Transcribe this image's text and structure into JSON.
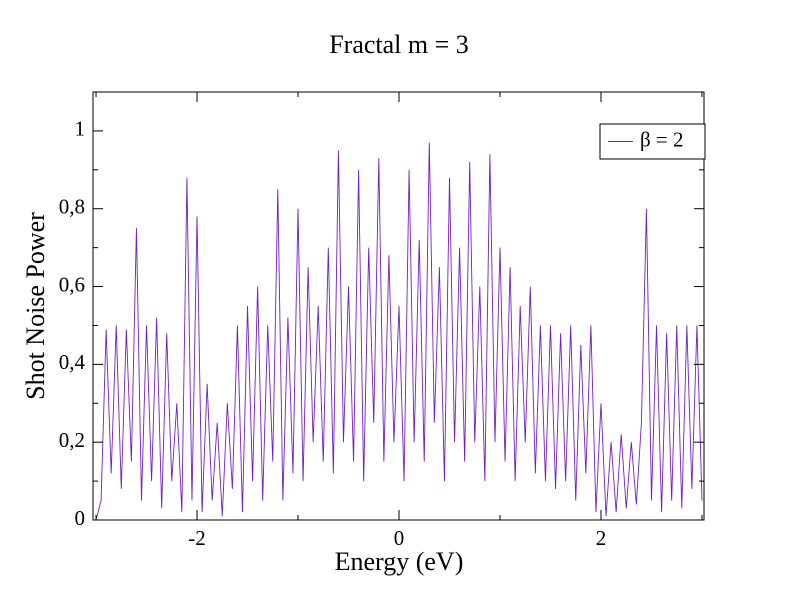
{
  "chart_data": {
    "type": "line",
    "title": "Fractal m = 3",
    "xlabel": "Energy (eV)",
    "ylabel": "Shot Noise Power",
    "xlim": [
      -3.03,
      3.02
    ],
    "ylim": [
      0,
      1.1
    ],
    "xticks": [
      -2,
      0,
      2
    ],
    "xminorticks": [
      -3,
      -1,
      1,
      3
    ],
    "yticks": [
      0,
      {
        "value": 0.2,
        "label": "0,2"
      },
      {
        "value": 0.4,
        "label": "0,4"
      },
      {
        "value": 0.6,
        "label": "0,6"
      },
      {
        "value": 0.8,
        "label": "0,8"
      },
      1
    ],
    "yminorticks": [
      0.1,
      0.3,
      0.5,
      0.7,
      0.9,
      1.1
    ],
    "legend": "upper right",
    "x": [
      -3,
      -2.95,
      -2.9,
      -2.85,
      -2.8,
      -2.75,
      -2.7,
      -2.65,
      -2.6,
      -2.55,
      -2.5,
      -2.45,
      -2.4,
      -2.35,
      -2.3,
      -2.25,
      -2.2,
      -2.15,
      -2.1,
      -2.05,
      -2,
      -1.95,
      -1.9,
      -1.85,
      -1.8,
      -1.75,
      -1.7,
      -1.65,
      -1.6,
      -1.55,
      -1.5,
      -1.45,
      -1.4,
      -1.35,
      -1.3,
      -1.25,
      -1.2,
      -1.15,
      -1.1,
      -1.05,
      -1,
      -0.95,
      -0.9,
      -0.85,
      -0.8,
      -0.75,
      -0.7,
      -0.65,
      -0.6,
      -0.55,
      -0.5,
      -0.45,
      -0.4,
      -0.35,
      -0.3,
      -0.25,
      -0.2,
      -0.15,
      -0.1,
      -0.05,
      0,
      0.05,
      0.1,
      0.15,
      0.2,
      0.25,
      0.3,
      0.35,
      0.4,
      0.45,
      0.5,
      0.55,
      0.6,
      0.65,
      0.7,
      0.75,
      0.8,
      0.85,
      0.9,
      0.95,
      1,
      1.05,
      1.1,
      1.15,
      1.2,
      1.25,
      1.3,
      1.35,
      1.4,
      1.45,
      1.5,
      1.55,
      1.6,
      1.65,
      1.7,
      1.75,
      1.8,
      1.85,
      1.9,
      1.95,
      2,
      2.05,
      2.1,
      2.15,
      2.2,
      2.25,
      2.3,
      2.35,
      2.4,
      2.45,
      2.5,
      2.55,
      2.6,
      2.65,
      2.7,
      2.75,
      2.8,
      2.85,
      2.9,
      2.95,
      3
    ],
    "series": [
      {
        "name": "β = 2",
        "color": "#7022c0",
        "values": [
          0,
          0.05,
          0.49,
          0.12,
          0.5,
          0.08,
          0.49,
          0.15,
          0.75,
          0.05,
          0.5,
          0.1,
          0.52,
          0.03,
          0.48,
          0.1,
          0.3,
          0.02,
          0.88,
          0.05,
          0.78,
          0.02,
          0.35,
          0.05,
          0.25,
          0.01,
          0.3,
          0.08,
          0.5,
          0.02,
          0.55,
          0.1,
          0.6,
          0.05,
          0.5,
          0.15,
          0.85,
          0.05,
          0.52,
          0.12,
          0.8,
          0.1,
          0.65,
          0.2,
          0.55,
          0.15,
          0.7,
          0.12,
          0.95,
          0.2,
          0.6,
          0.15,
          0.9,
          0.1,
          0.7,
          0.25,
          0.93,
          0.15,
          0.68,
          0.2,
          0.55,
          0.1,
          0.9,
          0.2,
          0.72,
          0.15,
          0.97,
          0.25,
          0.65,
          0.1,
          0.88,
          0.2,
          0.7,
          0.15,
          0.92,
          0.2,
          0.6,
          0.1,
          0.94,
          0.2,
          0.7,
          0.15,
          0.65,
          0.1,
          0.55,
          0.2,
          0.6,
          0.12,
          0.5,
          0.1,
          0.5,
          0.08,
          0.48,
          0.1,
          0.5,
          0.05,
          0.45,
          0.12,
          0.5,
          0.02,
          0.3,
          0.01,
          0.2,
          0.02,
          0.22,
          0.03,
          0.2,
          0.04,
          0.25,
          0.8,
          0.05,
          0.5,
          0.02,
          0.48,
          0.05,
          0.5,
          0.03,
          0.5,
          0.08,
          0.5,
          0.05
        ]
      }
    ]
  }
}
